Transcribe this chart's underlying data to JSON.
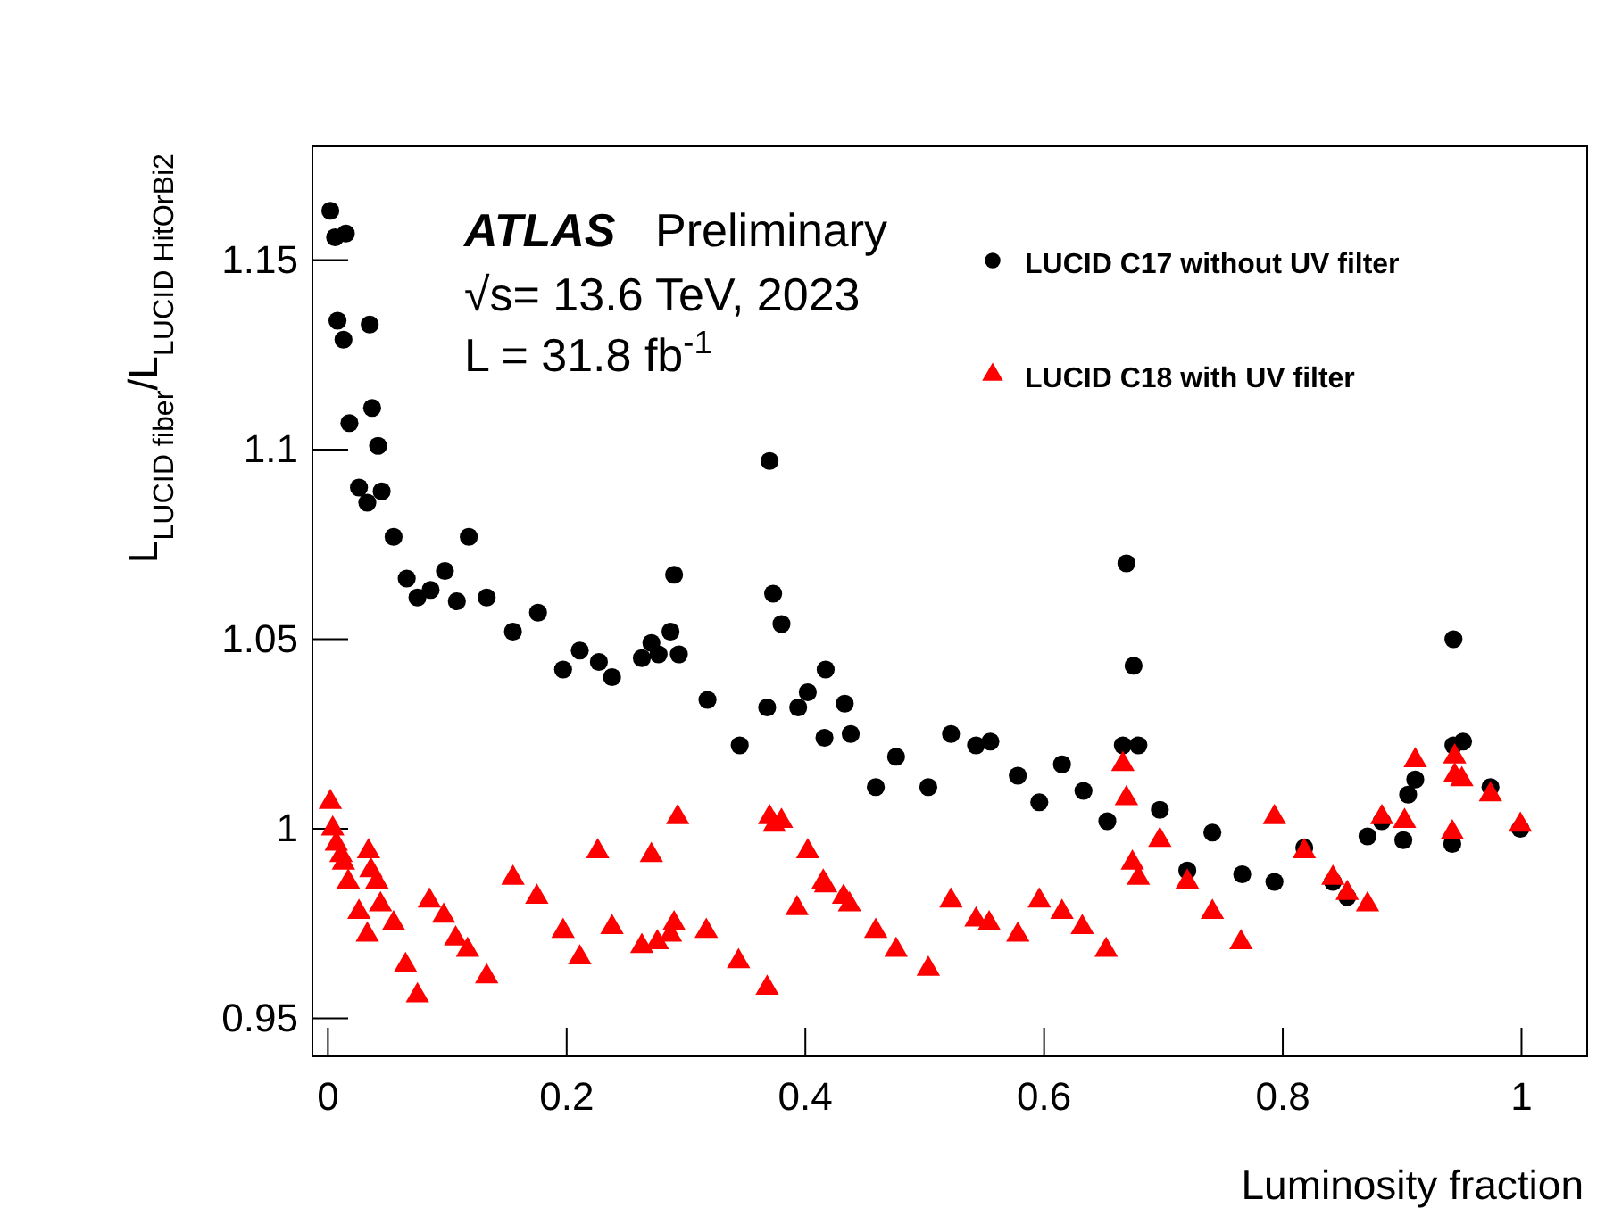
{
  "chart_data": {
    "type": "scatter",
    "xlabel": "Luminosity fraction",
    "ylabel": "L$_{LUCID fiber}$/L$_{LUCID HitOrBi2}$",
    "annotations": [
      "ATLAS",
      "Preliminary",
      "√s= 13.6 TeV, 2023",
      "L = 31.8 fb$^{-1}$"
    ],
    "xlim": [
      -0.013,
      1.055
    ],
    "ylim": [
      0.94,
      1.18
    ],
    "xticks": [
      0,
      0.2,
      0.4,
      0.6,
      0.8,
      1
    ],
    "yticks": [
      0.95,
      1,
      1.05,
      1.1,
      1.15
    ],
    "grid": false,
    "legend": "top right",
    "series": [
      {
        "name": "LUCID C17 without UV filter",
        "color": "#000000",
        "marker": "circle",
        "x": [
          0.002,
          0.006,
          0.015,
          0.008,
          0.013,
          0.035,
          0.018,
          0.037,
          0.042,
          0.026,
          0.033,
          0.045,
          0.055,
          0.066,
          0.075,
          0.086,
          0.098,
          0.108,
          0.118,
          0.133,
          0.155,
          0.176,
          0.197,
          0.211,
          0.227,
          0.238,
          0.263,
          0.271,
          0.277,
          0.287,
          0.29,
          0.294,
          0.318,
          0.345,
          0.37,
          0.373,
          0.38,
          0.368,
          0.394,
          0.402,
          0.417,
          0.416,
          0.433,
          0.438,
          0.459,
          0.476,
          0.503,
          0.522,
          0.543,
          0.555,
          0.578,
          0.596,
          0.615,
          0.633,
          0.653,
          0.666,
          0.669,
          0.675,
          0.679,
          0.697,
          0.72,
          0.741,
          0.766,
          0.793,
          0.818,
          0.842,
          0.854,
          0.871,
          0.883,
          0.901,
          0.905,
          0.911,
          0.943,
          0.942,
          0.943,
          0.951,
          0.974,
          0.999
        ],
        "values": [
          1.163,
          1.156,
          1.157,
          1.134,
          1.129,
          1.133,
          1.107,
          1.111,
          1.101,
          1.09,
          1.086,
          1.089,
          1.077,
          1.066,
          1.061,
          1.063,
          1.068,
          1.06,
          1.077,
          1.061,
          1.052,
          1.057,
          1.042,
          1.047,
          1.044,
          1.04,
          1.045,
          1.049,
          1.046,
          1.052,
          1.067,
          1.046,
          1.034,
          1.022,
          1.097,
          1.062,
          1.054,
          1.032,
          1.032,
          1.036,
          1.042,
          1.024,
          1.033,
          1.025,
          1.011,
          1.019,
          1.011,
          1.025,
          1.022,
          1.023,
          1.014,
          1.007,
          1.017,
          1.01,
          1.002,
          1.022,
          1.07,
          1.043,
          1.022,
          1.005,
          0.989,
          0.999,
          0.988,
          0.986,
          0.995,
          0.986,
          0.982,
          0.998,
          1.002,
          0.997,
          1.009,
          1.013,
          1.05,
          0.996,
          1.022,
          1.023,
          1.011,
          1.0
        ]
      },
      {
        "name": "LUCID C18 with UV filter",
        "color": "#ff0000",
        "marker": "triangle",
        "x": [
          0.002,
          0.004,
          0.007,
          0.011,
          0.013,
          0.017,
          0.026,
          0.033,
          0.034,
          0.036,
          0.041,
          0.044,
          0.055,
          0.065,
          0.075,
          0.085,
          0.097,
          0.107,
          0.117,
          0.133,
          0.155,
          0.175,
          0.197,
          0.211,
          0.226,
          0.238,
          0.263,
          0.271,
          0.276,
          0.287,
          0.29,
          0.293,
          0.317,
          0.344,
          0.368,
          0.37,
          0.374,
          0.38,
          0.393,
          0.402,
          0.415,
          0.417,
          0.432,
          0.437,
          0.459,
          0.476,
          0.503,
          0.522,
          0.543,
          0.554,
          0.578,
          0.596,
          0.615,
          0.632,
          0.652,
          0.666,
          0.669,
          0.674,
          0.679,
          0.697,
          0.72,
          0.741,
          0.765,
          0.793,
          0.818,
          0.842,
          0.854,
          0.871,
          0.883,
          0.902,
          0.911,
          0.944,
          0.944,
          0.95,
          0.942,
          0.974,
          0.999
        ],
        "values": [
          1.007,
          1.0,
          0.996,
          0.993,
          0.991,
          0.986,
          0.978,
          0.972,
          0.994,
          0.989,
          0.986,
          0.98,
          0.975,
          0.964,
          0.956,
          0.981,
          0.977,
          0.971,
          0.968,
          0.961,
          0.987,
          0.982,
          0.973,
          0.966,
          0.994,
          0.974,
          0.969,
          0.993,
          0.97,
          0.972,
          0.975,
          1.003,
          0.973,
          0.965,
          0.958,
          1.003,
          1.001,
          1.002,
          0.979,
          0.994,
          0.986,
          0.985,
          0.982,
          0.98,
          0.973,
          0.968,
          0.963,
          0.981,
          0.976,
          0.975,
          0.972,
          0.981,
          0.978,
          0.974,
          0.968,
          1.017,
          1.008,
          0.991,
          0.987,
          0.997,
          0.986,
          0.978,
          0.97,
          1.003,
          0.994,
          0.987,
          0.983,
          0.98,
          1.003,
          1.002,
          1.018,
          1.019,
          1.014,
          1.013,
          0.999,
          1.009,
          1.001
        ]
      }
    ]
  }
}
